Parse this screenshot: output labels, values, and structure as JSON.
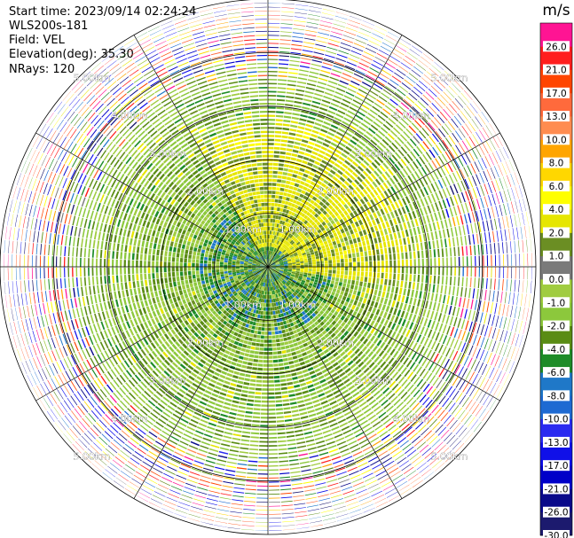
{
  "header": {
    "start_time": "Start time: 2023/09/14 02:24:24",
    "site": "WLS200s-181",
    "field": "Field: VEL",
    "elevation": "Elevation(deg): 35.30",
    "nrays": "NRays: 120"
  },
  "chart_data": {
    "type": "heatmap",
    "projection": "polar-ppi",
    "field": "VEL",
    "unit": "m/s",
    "nrays": 120,
    "range_max_km": 5.0,
    "range_rings_km": [
      1,
      2,
      3,
      4,
      5
    ],
    "ring_labels": [
      "1.00km",
      "2.00km",
      "3.00km",
      "4.00km",
      "5.00km"
    ],
    "spokes_deg": [
      0,
      30,
      60,
      90,
      120,
      150,
      180,
      210,
      240,
      270,
      300,
      330
    ],
    "colorbar": {
      "title": "m/s",
      "boundaries": [
        -30,
        -26,
        -21,
        -17,
        -13,
        -10,
        -8,
        -6,
        -4,
        -2,
        -1,
        0,
        1,
        2,
        4,
        6,
        8,
        10,
        13,
        17,
        21,
        26,
        30
      ],
      "tick_labels": [
        "-30.0",
        "-26.0",
        "-21.0",
        "-17.0",
        "-13.0",
        "-10.0",
        "-8.0",
        "-6.0",
        "-4.0",
        "-2.0",
        "-1.0",
        "0.0",
        "1.0",
        "2.0",
        "4.0",
        "6.0",
        "8.0",
        "10.0",
        "13.0",
        "17.0",
        "21.0",
        "26.0"
      ],
      "colors": [
        "#1c1a6e",
        "#0a0a8a",
        "#0000c8",
        "#1010e8",
        "#2a2af0",
        "#1e6ad2",
        "#1f78c8",
        "#1e8c28",
        "#5a8c14",
        "#8cc83c",
        "#a0cc40",
        "#7a7a7a",
        "#6b8e23",
        "#e6e600",
        "#ffff00",
        "#ffd700",
        "#ffa500",
        "#ff8c50",
        "#ff6a3c",
        "#ff4500",
        "#ff1e1e",
        "#ff1493"
      ]
    },
    "pattern_summary": {
      "inner_positive_sector_deg": [
        330,
        100
      ],
      "inner_positive_max_range_km": 2.7,
      "noise_start_km": 3.8
    }
  }
}
